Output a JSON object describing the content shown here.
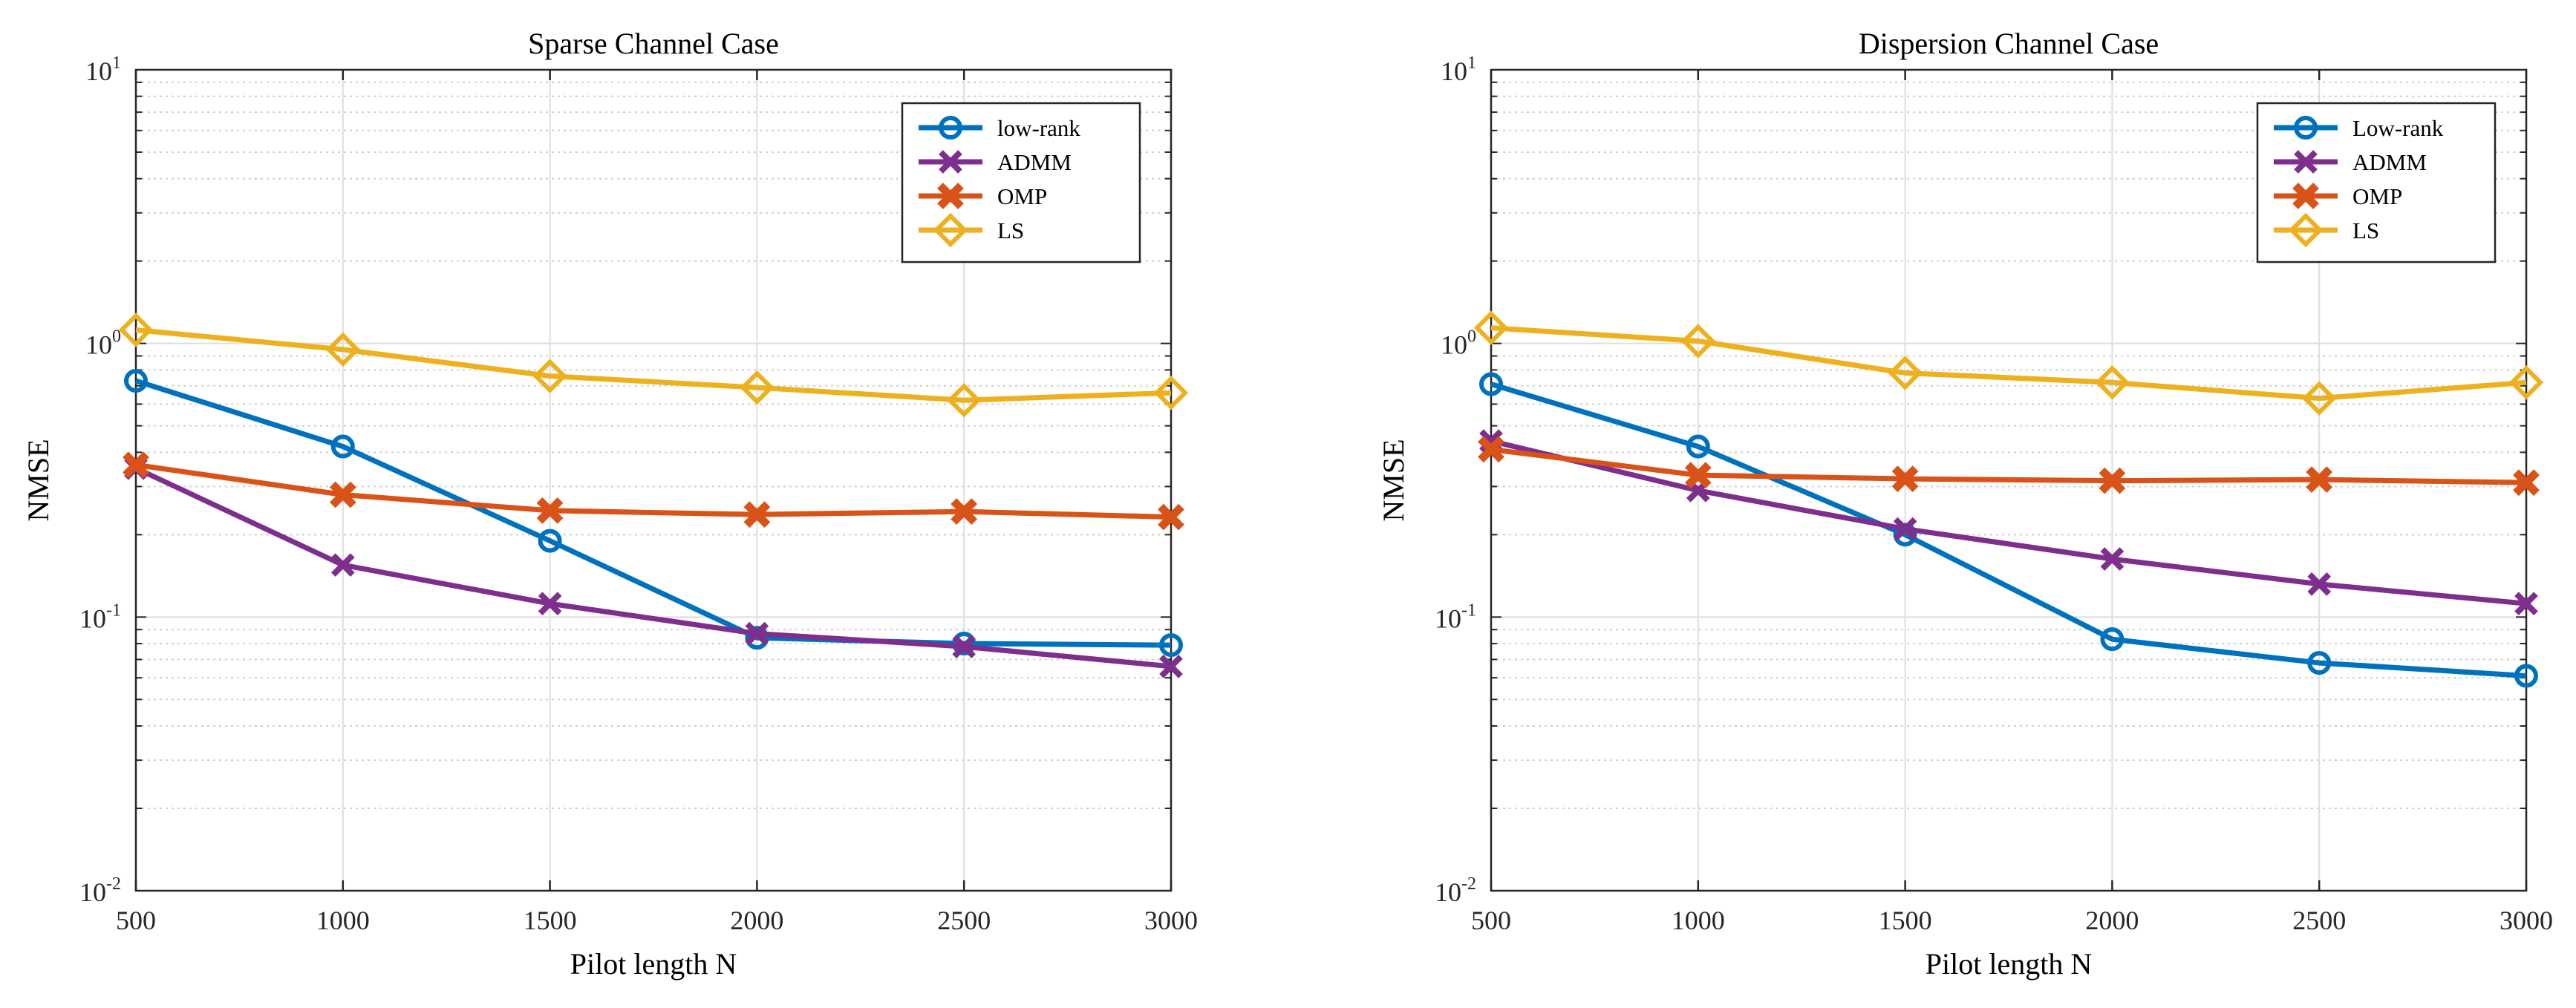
{
  "chart_data": [
    {
      "type": "line",
      "title": "Sparse Channel Case",
      "xlabel": "Pilot length N",
      "ylabel": "NMSE",
      "yscale": "log",
      "ylim": [
        0.01,
        10
      ],
      "xlim": [
        500,
        3000
      ],
      "grid": true,
      "minor_grid": true,
      "legend_position": "top-right",
      "x": [
        500,
        1000,
        1500,
        2000,
        2500,
        3000
      ],
      "x_tick_labels": [
        "500",
        "1000",
        "1500",
        "2000",
        "2500",
        "3000"
      ],
      "y_ticks": [
        {
          "value": 0.01,
          "base": "10",
          "exp": "-2"
        },
        {
          "value": 0.1,
          "base": "10",
          "exp": "-1"
        },
        {
          "value": 1,
          "base": "10",
          "exp": "0"
        },
        {
          "value": 10,
          "base": "10",
          "exp": "1"
        }
      ],
      "series": [
        {
          "name": "low-rank",
          "color": "#0072BD",
          "marker": "circle",
          "values": [
            0.73,
            0.42,
            0.19,
            0.084,
            0.08,
            0.079
          ]
        },
        {
          "name": "ADMM",
          "color": "#7E2F8E",
          "marker": "x",
          "values": [
            0.35,
            0.155,
            0.112,
            0.087,
            0.078,
            0.066
          ]
        },
        {
          "name": "OMP",
          "color": "#D95319",
          "marker": "filled-x",
          "values": [
            0.36,
            0.28,
            0.245,
            0.237,
            0.243,
            0.232
          ]
        },
        {
          "name": "LS",
          "color": "#EDB120",
          "marker": "diamond",
          "values": [
            1.12,
            0.95,
            0.76,
            0.69,
            0.62,
            0.66
          ]
        }
      ]
    },
    {
      "type": "line",
      "title": "Dispersion Channel Case",
      "xlabel": "Pilot length N",
      "ylabel": "NMSE",
      "yscale": "log",
      "ylim": [
        0.01,
        10
      ],
      "xlim": [
        500,
        3000
      ],
      "grid": true,
      "minor_grid": true,
      "legend_position": "top-right",
      "x": [
        500,
        1000,
        1500,
        2000,
        2500,
        3000
      ],
      "x_tick_labels": [
        "500",
        "1000",
        "1500",
        "2000",
        "2500",
        "3000"
      ],
      "y_ticks": [
        {
          "value": 0.01,
          "base": "10",
          "exp": "-2"
        },
        {
          "value": 0.1,
          "base": "10",
          "exp": "-1"
        },
        {
          "value": 1,
          "base": "10",
          "exp": "0"
        },
        {
          "value": 10,
          "base": "10",
          "exp": "1"
        }
      ],
      "series": [
        {
          "name": "Low-rank",
          "color": "#0072BD",
          "marker": "circle",
          "values": [
            0.71,
            0.42,
            0.2,
            0.083,
            0.068,
            0.061
          ]
        },
        {
          "name": "ADMM",
          "color": "#7E2F8E",
          "marker": "x",
          "values": [
            0.44,
            0.29,
            0.21,
            0.163,
            0.132,
            0.112
          ]
        },
        {
          "name": "OMP",
          "color": "#D95319",
          "marker": "filled-x",
          "values": [
            0.41,
            0.33,
            0.32,
            0.315,
            0.318,
            0.31
          ]
        },
        {
          "name": "LS",
          "color": "#EDB120",
          "marker": "diamond",
          "values": [
            1.14,
            1.02,
            0.78,
            0.72,
            0.63,
            0.72
          ]
        }
      ]
    }
  ]
}
